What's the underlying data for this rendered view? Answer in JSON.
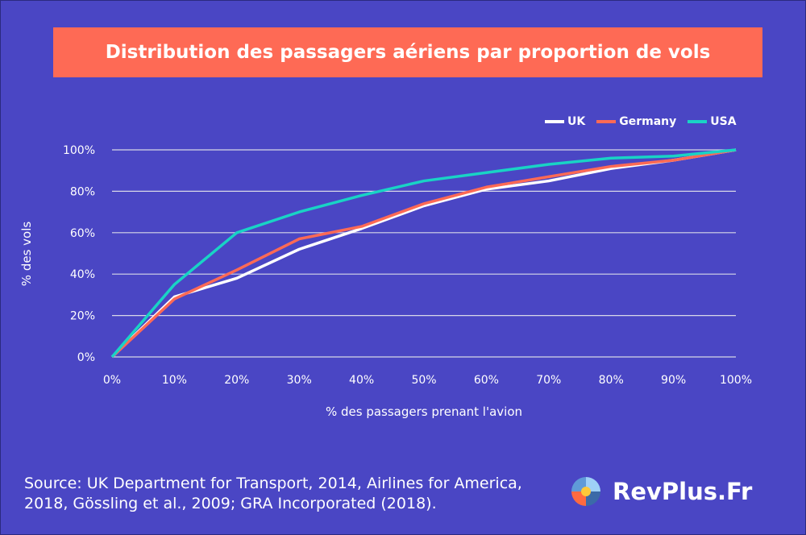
{
  "title": "Distribution des passagers aériens par proportion de vols",
  "source": "Source: UK Department for Transport, 2014, Airlines for America, 2018, Gössling et al., 2009; GRA Incorporated (2018).",
  "brand": "RevPlus.Fr",
  "chart_data": {
    "type": "line",
    "title": "Distribution des passagers aériens par proportion de vols",
    "xlabel": "% des passagers prenant l'avion",
    "ylabel": "% des vols",
    "x": [
      0,
      10,
      20,
      30,
      40,
      50,
      60,
      70,
      80,
      90,
      100
    ],
    "x_tick_labels": [
      "0%",
      "10%",
      "20%",
      "30%",
      "40%",
      "50%",
      "60%",
      "70%",
      "80%",
      "90%",
      "100%"
    ],
    "y_tick_labels": [
      "0%",
      "20%",
      "40%",
      "60%",
      "80%",
      "100%"
    ],
    "xlim": [
      0,
      100
    ],
    "ylim": [
      0,
      100
    ],
    "grid": "horizontal",
    "legend": "top-right",
    "series": [
      {
        "name": "UK",
        "color": "#ffffff",
        "values": [
          0,
          29,
          38,
          52,
          62,
          73,
          81,
          85,
          91,
          95,
          100
        ]
      },
      {
        "name": "Germany",
        "color": "#fe6a55",
        "values": [
          0,
          28,
          42,
          57,
          63,
          74,
          82,
          87,
          92,
          95,
          100
        ]
      },
      {
        "name": "USA",
        "color": "#19d3c5",
        "values": [
          0,
          35,
          60,
          70,
          78,
          85,
          89,
          93,
          96,
          97,
          100
        ]
      }
    ]
  }
}
